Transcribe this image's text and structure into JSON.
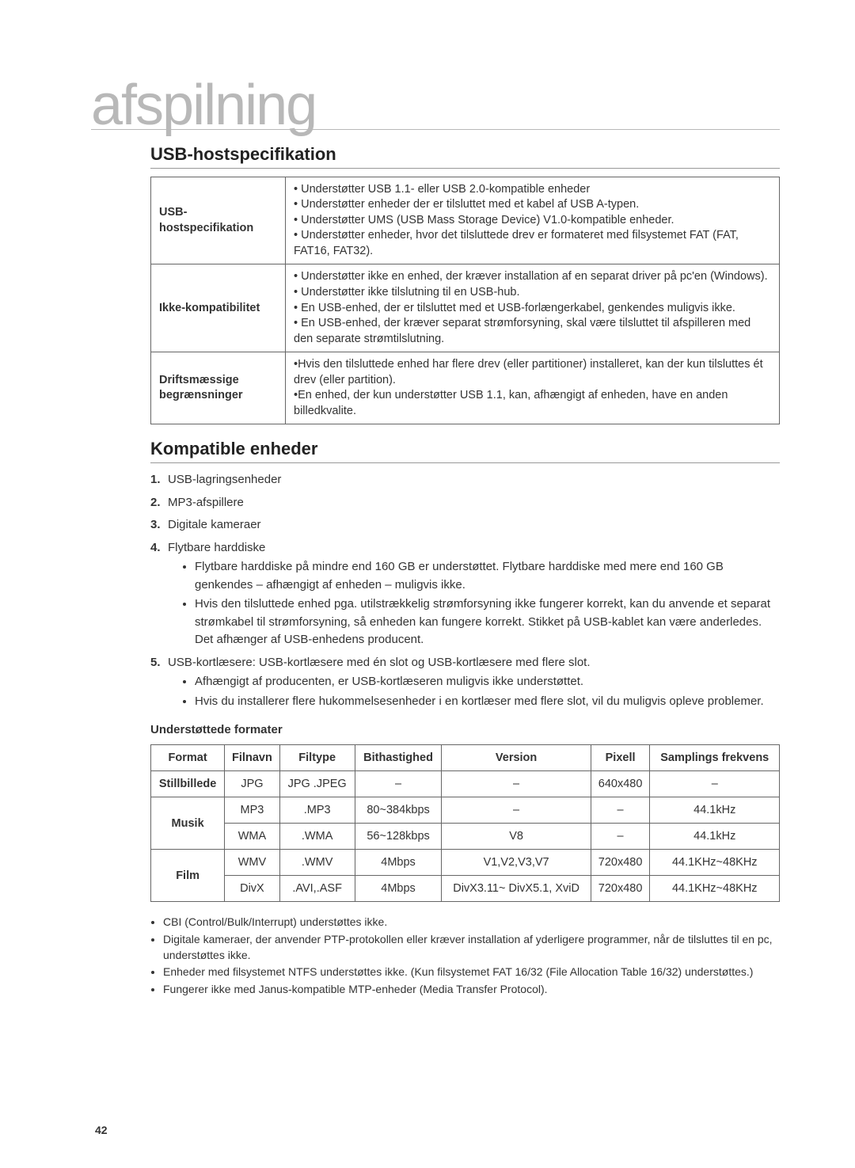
{
  "title": "afspilning",
  "section1": {
    "heading": "USB-hostspecifikation",
    "rows": [
      {
        "label": "USB-hostspecifikation",
        "bullets": [
          "Understøtter USB 1.1- eller USB 2.0-kompatible enheder",
          "Understøtter enheder der er tilsluttet med et kabel af USB A-typen.",
          "Understøtter UMS (USB Mass Storage Device) V1.0-kompatible enheder.",
          "Understøtter enheder, hvor det tilsluttede drev er formateret med filsystemet FAT (FAT, FAT16, FAT32)."
        ]
      },
      {
        "label": "Ikke-kompatibilitet",
        "bullets": [
          "Understøtter ikke en enhed, der kræver installation af en separat driver på pc'en (Windows).",
          "Understøtter ikke tilslutning til en USB-hub.",
          "En USB-enhed, der er tilsluttet med et USB-forlængerkabel, genkendes muligvis ikke.",
          "En USB-enhed, der kræver separat strømforsyning, skal være tilsluttet til afspilleren med den separate strømtilslutning."
        ]
      },
      {
        "label": "Driftsmæssige begrænsninger",
        "bullets": [
          "Hvis den tilsluttede enhed har flere drev (eller partitioner) installeret, kan der kun tilsluttes ét drev (eller partition).",
          "En enhed, der kun understøtter USB 1.1, kan, afhængigt af enheden, have en anden billedkvalite."
        ]
      }
    ]
  },
  "section2": {
    "heading": "Kompatible enheder",
    "items": [
      {
        "text": "USB-lagringsenheder"
      },
      {
        "text": "MP3-afspillere"
      },
      {
        "text": "Digitale kameraer"
      },
      {
        "text": "Flytbare harddiske",
        "sub": [
          "Flytbare harddiske på mindre end 160 GB er understøttet. Flytbare harddiske med mere end 160 GB genkendes – afhængigt af enheden – muligvis ikke.",
          "Hvis den tilsluttede enhed pga. utilstrækkelig strømforsyning ikke fungerer korrekt, kan du anvende et separat strømkabel til strømforsyning, så enheden kan fungere korrekt. Stikket på USB-kablet kan være anderledes. Det afhænger af USB-enhedens producent."
        ]
      },
      {
        "text": "USB-kortlæsere: USB-kortlæsere med én slot og USB-kortlæsere med flere slot.",
        "sub": [
          "Afhængigt af producenten, er USB-kortlæseren muligvis ikke understøttet.",
          "Hvis du installerer flere hukommelsesenheder i en kortlæser med flere slot, vil du muligvis opleve problemer."
        ]
      }
    ],
    "formats_label": "Understøttede formater",
    "formats_headers": [
      "Format",
      "Filnavn",
      "Filtype",
      "Bithastighed",
      "Version",
      "Pixell",
      "Samplings frekvens"
    ],
    "formats": {
      "stillbillede": {
        "label": "Stillbillede",
        "rows": [
          [
            "JPG",
            "JPG .JPEG",
            "–",
            "–",
            "640x480",
            "–"
          ]
        ]
      },
      "musik": {
        "label": "Musik",
        "rows": [
          [
            "MP3",
            ".MP3",
            "80~384kbps",
            "–",
            "–",
            "44.1kHz"
          ],
          [
            "WMA",
            ".WMA",
            "56~128kbps",
            "V8",
            "–",
            "44.1kHz"
          ]
        ]
      },
      "film": {
        "label": "Film",
        "rows": [
          [
            "WMV",
            ".WMV",
            "4Mbps",
            "V1,V2,V3,V7",
            "720x480",
            "44.1KHz~48KHz"
          ],
          [
            "DivX",
            ".AVI,.ASF",
            "4Mbps",
            "DivX3.11~ DivX5.1, XviD",
            "720x480",
            "44.1KHz~48KHz"
          ]
        ]
      }
    },
    "notes": [
      "CBI (Control/Bulk/Interrupt) understøttes ikke.",
      "Digitale kameraer, der anvender PTP-protokollen eller kræver installation af yderligere programmer, når de tilsluttes til en pc, understøttes ikke.",
      "Enheder med filsystemet NTFS understøttes ikke. (Kun filsystemet FAT 16/32 (File Allocation Table 16/32) understøttes.)",
      "Fungerer ikke med Janus-kompatible MTP-enheder (Media Transfer Protocol)."
    ]
  },
  "page_number": "42"
}
